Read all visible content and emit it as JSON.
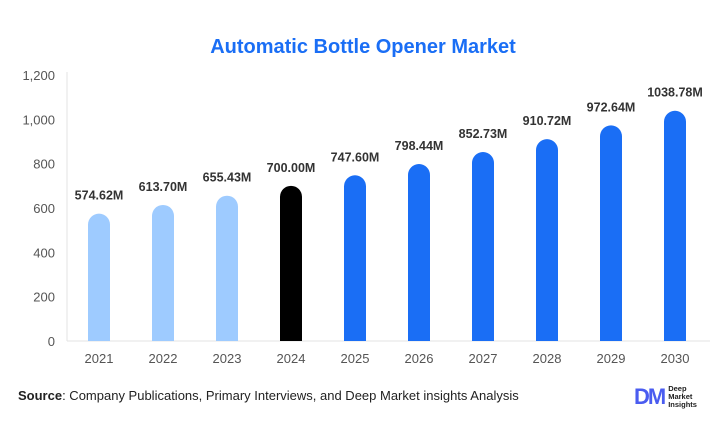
{
  "chart_data": {
    "type": "bar",
    "title": "Automatic Bottle Opener Market",
    "categories": [
      "2021",
      "2022",
      "2023",
      "2024",
      "2025",
      "2026",
      "2027",
      "2028",
      "2029",
      "2030"
    ],
    "values": [
      574.62,
      613.7,
      655.43,
      700.0,
      747.6,
      798.44,
      852.73,
      910.72,
      972.64,
      1038.78
    ],
    "data_labels": [
      "574.62M",
      "613.70M",
      "655.43M",
      "700.00M",
      "747.60M",
      "798.44M",
      "852.73M",
      "910.72M",
      "972.64M",
      "1038.78M"
    ],
    "bar_colors": [
      "#9ecbff",
      "#9ecbff",
      "#9ecbff",
      "#000000",
      "#1a6ef5",
      "#1a6ef5",
      "#1a6ef5",
      "#1a6ef5",
      "#1a6ef5",
      "#1a6ef5"
    ],
    "ylim": [
      0,
      1200
    ],
    "yticks": [
      0,
      200,
      400,
      600,
      800,
      1000,
      1200
    ],
    "ytick_labels": [
      "0",
      "200",
      "400",
      "600",
      "800",
      "1,000",
      "1,200"
    ],
    "xlabel": "",
    "ylabel": "",
    "grid": false,
    "legend": "none"
  },
  "source": {
    "label": "Source",
    "text": ": Company Publications, Primary Interviews, and Deep Market insights Analysis"
  },
  "logo": {
    "mark": "DM",
    "line1": "Deep",
    "line2": "Market",
    "line3": "Insights"
  }
}
